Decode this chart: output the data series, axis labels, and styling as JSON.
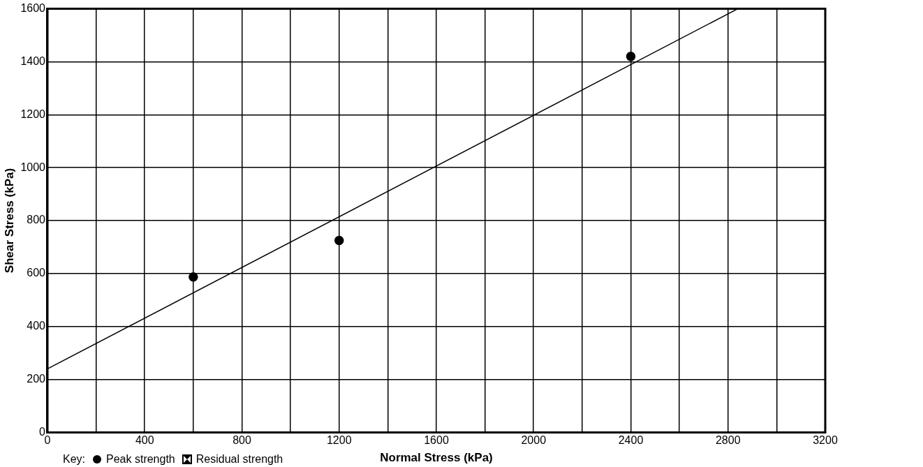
{
  "chart_data": {
    "type": "scatter",
    "xlabel": "Normal Stress (kPa)",
    "ylabel": "Shear Stress (kPa)",
    "legend_title": "Key:",
    "xlim": [
      0,
      3200
    ],
    "ylim": [
      0,
      1600
    ],
    "xticks": [
      0,
      {
        "value": 200,
        "label": null
      },
      400,
      {
        "value": 600,
        "label": null
      },
      800,
      {
        "value": 1000,
        "label": null
      },
      1200,
      {
        "value": 1400,
        "label": null
      },
      1600,
      {
        "value": 1800,
        "label": null
      },
      2000,
      {
        "value": 2200,
        "label": null
      },
      2400,
      {
        "value": 2600,
        "label": null
      },
      2800,
      {
        "value": 3000,
        "label": null
      },
      3200
    ],
    "yticks": [
      0,
      200,
      400,
      600,
      800,
      1000,
      1200,
      1400,
      1600
    ],
    "grid": true,
    "legend": "bottom left",
    "series": [
      {
        "name": "Peak strength",
        "marker": "circle",
        "color": "#000000",
        "x": [
          600,
          1200,
          2400
        ],
        "values": [
          587,
          725,
          1420
        ]
      },
      {
        "name": "Residual strength",
        "marker": "square",
        "color": "#000000"
      },
      {
        "type": "line",
        "marker": "none",
        "color": "#000000",
        "x": [
          0,
          2840
        ],
        "values": [
          240,
          1600
        ]
      }
    ]
  }
}
